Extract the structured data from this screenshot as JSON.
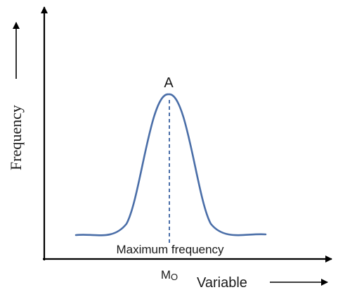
{
  "diagram": {
    "peak_label": "A",
    "peak_caption": "Maximum frequency",
    "mode_label_main": "M",
    "mode_label_sub": "O",
    "x_axis_label": "Variable",
    "y_axis_label": "Frequency",
    "colors": {
      "curve": "#4a6ea8",
      "axes": "#000000",
      "text": "#1a1a1a"
    }
  }
}
